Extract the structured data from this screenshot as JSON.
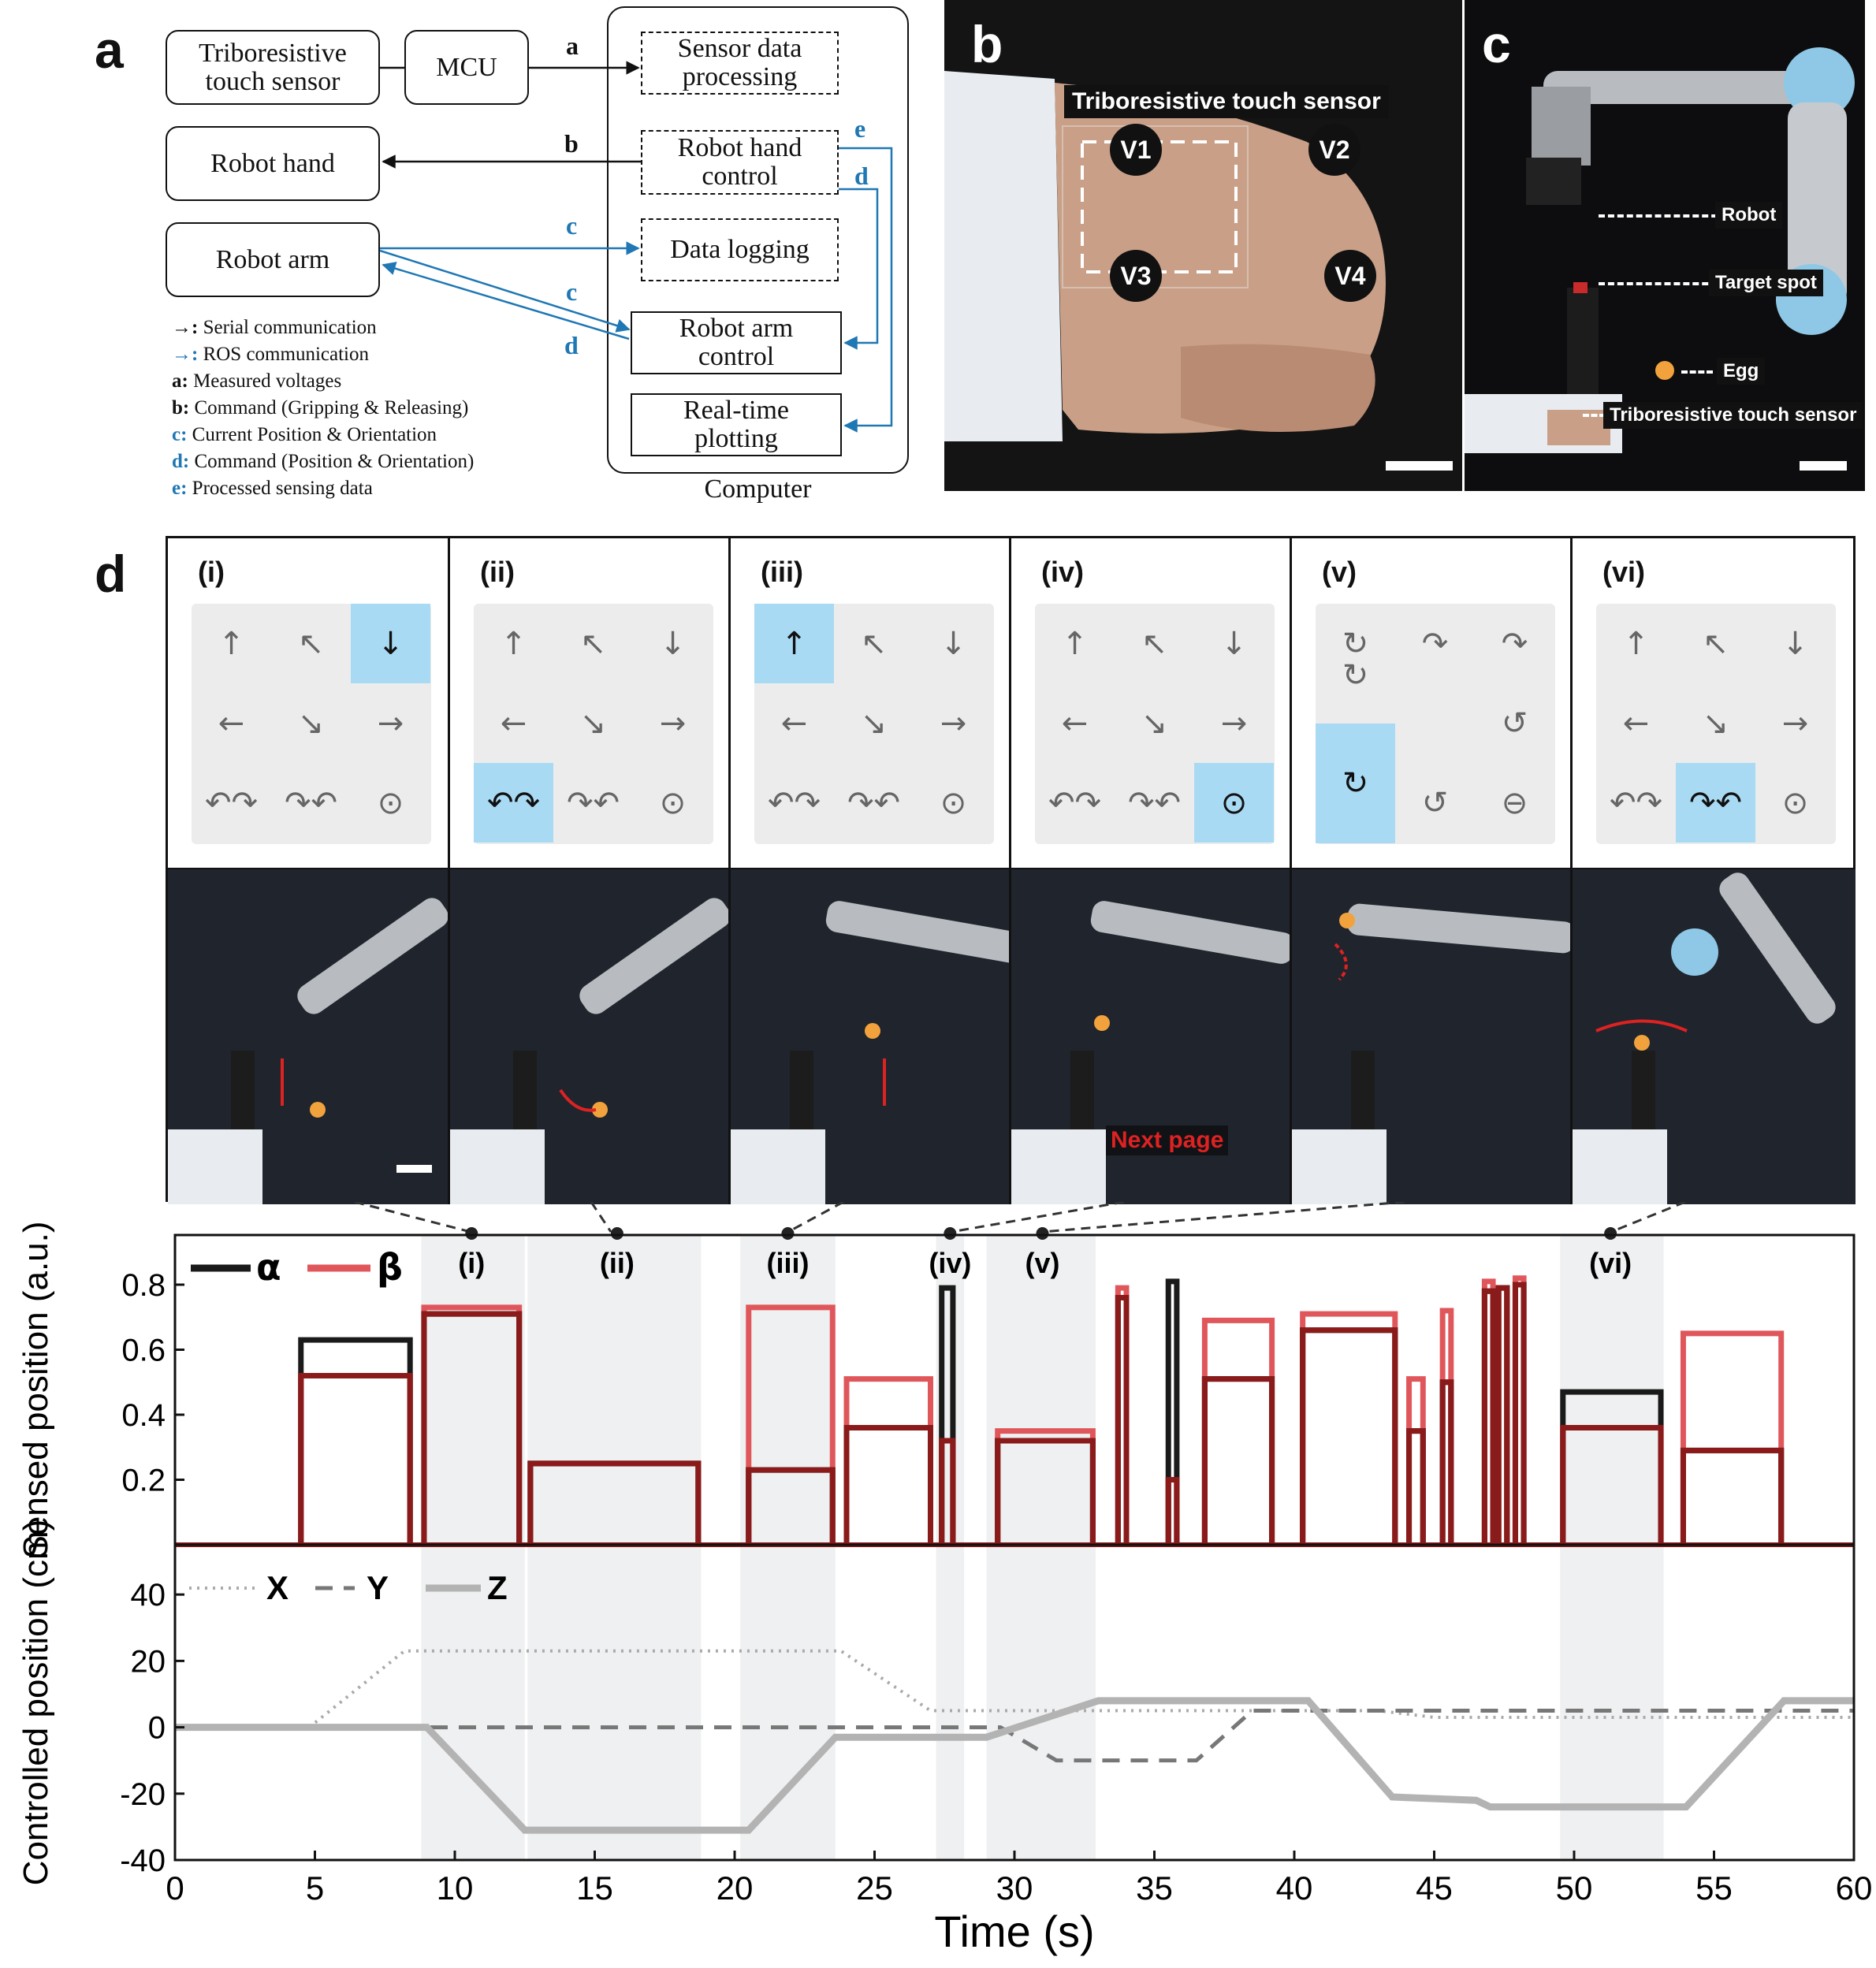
{
  "panel_letters": {
    "a": "a",
    "b": "b",
    "c": "c",
    "d": "d"
  },
  "diagram": {
    "sensor": "Triboresistive touch sensor",
    "mcu": "MCU",
    "robot_hand": "Robot hand",
    "robot_arm": "Robot arm",
    "sensor_processing": "Sensor data processing",
    "hand_control": "Robot hand control",
    "data_logging": "Data logging",
    "arm_control": "Robot arm control",
    "plotting": "Real-time plotting",
    "computer": "Computer",
    "arrow_labels": {
      "a": "a",
      "b": "b",
      "c1": "c",
      "c2": "c",
      "d1": "d",
      "d2": "d",
      "e": "e"
    },
    "legend": [
      {
        "sym": "→:",
        "text": " Serial communication",
        "color": "#111111"
      },
      {
        "sym": "→:",
        "text": " ROS communication",
        "color": "#1f77b4"
      },
      {
        "sym": "a:",
        "text": " Measured voltages",
        "color": "#111111"
      },
      {
        "sym": "b:",
        "text": " Command (Gripping & Releasing)",
        "color": "#111111"
      },
      {
        "sym": "c:",
        "text": " Current Position & Orientation",
        "color": "#1f77b4"
      },
      {
        "sym": "d:",
        "text": " Command (Position & Orientation)",
        "color": "#1f77b4"
      },
      {
        "sym": "e:",
        "text": " Processed sensing data",
        "color": "#1f77b4"
      }
    ]
  },
  "photo_b": {
    "title": "Triboresistive touch sensor",
    "corners": [
      "V1",
      "V2",
      "V3",
      "V4"
    ]
  },
  "photo_c": {
    "robot": "Robot",
    "target": "Target spot",
    "egg": "Egg",
    "sensor": "Triboresistive touch sensor"
  },
  "steps": [
    {
      "label": "(i)",
      "cells": [
        "↑",
        "↖",
        "↓",
        "←",
        "↘",
        "→",
        "↶↷",
        "↷↶",
        "⊙"
      ],
      "highlight": 2
    },
    {
      "label": "(ii)",
      "cells": [
        "↑",
        "↖",
        "↓",
        "←",
        "↘",
        "→",
        "↶↷",
        "↷↶",
        "⊙"
      ],
      "highlight": 6
    },
    {
      "label": "(iii)",
      "cells": [
        "↑",
        "↖",
        "↓",
        "←",
        "↘",
        "→",
        "↶↷",
        "↷↶",
        "⊙"
      ],
      "highlight": 0
    },
    {
      "label": "(iv)",
      "cells": [
        "↑",
        "↖",
        "↓",
        "←",
        "↘",
        "→",
        "↶↷",
        "↷↶",
        "⊙"
      ],
      "highlight": 8
    },
    {
      "label": "(v)",
      "cells": [
        "↻",
        "↷",
        "↷",
        "↻",
        "",
        "↺",
        "↻",
        "↺",
        "⊖"
      ],
      "highlight": 3
    },
    {
      "label": "(vi)",
      "cells": [
        "↑",
        "↖",
        "↓",
        "←",
        "↘",
        "→",
        "↶↷",
        "↷↶",
        "⊙"
      ],
      "highlight": 7
    }
  ],
  "next_page_label": "Next page",
  "colors": {
    "alpha": "#1a1a1a",
    "beta": "#e0575b",
    "overlap": "#8b1a1a",
    "axis_gray": "#aaaaaa",
    "highlight": "#a9daf3",
    "arrow_blue": "#1f77b4"
  },
  "chart_data": [
    {
      "type": "line",
      "ylabel": "Sensed position (a.u.)",
      "xlim": [
        0,
        60
      ],
      "ylim": [
        0,
        0.8
      ],
      "yticks": [
        0.2,
        0.4,
        0.6,
        0.8
      ],
      "legend": [
        {
          "name": "α",
          "color": "#1a1a1a"
        },
        {
          "name": "β",
          "color": "#e0575b"
        }
      ],
      "highlight_regions": [
        {
          "label": "(i)",
          "x": [
            8.8,
            12.5
          ],
          "marker_x": 10.6
        },
        {
          "label": "(ii)",
          "x": [
            12.6,
            18.8
          ],
          "marker_x": 15.8
        },
        {
          "label": "(iii)",
          "x": [
            20.2,
            23.6
          ],
          "marker_x": 21.9
        },
        {
          "label": "(iv)",
          "x": [
            27.2,
            28.2
          ],
          "marker_x": 27.7
        },
        {
          "label": "(v)",
          "x": [
            29.0,
            32.9
          ],
          "marker_x": 31.0
        },
        {
          "label": "(vi)",
          "x": [
            49.5,
            53.2
          ],
          "marker_x": 51.3
        }
      ],
      "pulses": [
        {
          "x": [
            4.5,
            8.4
          ],
          "alpha": 0.63,
          "beta": 0.52
        },
        {
          "x": [
            8.9,
            12.3
          ],
          "alpha": 0.71,
          "beta": 0.73
        },
        {
          "x": [
            12.7,
            18.7
          ],
          "alpha": 0.25,
          "beta": 0.25
        },
        {
          "x": [
            20.5,
            23.5
          ],
          "alpha": 0.23,
          "beta": 0.73
        },
        {
          "x": [
            24.0,
            27.0
          ],
          "alpha": 0.36,
          "beta": 0.51
        },
        {
          "x": [
            27.4,
            27.8
          ],
          "alpha": 0.79,
          "beta": 0.32
        },
        {
          "x": [
            29.4,
            32.8
          ],
          "alpha": 0.32,
          "beta": 0.35
        },
        {
          "x": [
            33.7,
            34.0
          ],
          "alpha": 0.76,
          "beta": 0.79
        },
        {
          "x": [
            35.5,
            35.8
          ],
          "alpha": 0.81,
          "beta": 0.2
        },
        {
          "x": [
            36.8,
            39.2
          ],
          "alpha": 0.51,
          "beta": 0.69
        },
        {
          "x": [
            40.3,
            43.6
          ],
          "alpha": 0.66,
          "beta": 0.71
        },
        {
          "x": [
            44.1,
            44.6
          ],
          "alpha": 0.35,
          "beta": 0.51
        },
        {
          "x": [
            45.3,
            45.6
          ],
          "alpha": 0.5,
          "beta": 0.72
        },
        {
          "x": [
            46.8,
            47.1
          ],
          "alpha": 0.78,
          "beta": 0.81
        },
        {
          "x": [
            47.3,
            47.6
          ],
          "alpha": 0.79,
          "beta": 0.79
        },
        {
          "x": [
            47.9,
            48.2
          ],
          "alpha": 0.8,
          "beta": 0.82
        },
        {
          "x": [
            49.6,
            53.1
          ],
          "alpha": 0.47,
          "beta": 0.36
        },
        {
          "x": [
            53.9,
            57.4
          ],
          "alpha": 0.29,
          "beta": 0.65
        }
      ]
    },
    {
      "type": "line",
      "ylabel": "Controlled position (cm)",
      "xlabel": "Time (s)",
      "xlim": [
        0,
        60
      ],
      "ylim": [
        -40,
        55
      ],
      "xticks": [
        0,
        5,
        10,
        15,
        20,
        25,
        30,
        35,
        40,
        45,
        50,
        55,
        60
      ],
      "yticks": [
        40,
        20,
        0,
        -20,
        -40
      ],
      "legend": [
        {
          "name": "X",
          "style": "dotted"
        },
        {
          "name": "Y",
          "style": "dashed"
        },
        {
          "name": "Z",
          "style": "solid"
        }
      ],
      "series": [
        {
          "name": "X",
          "x": [
            0,
            4.8,
            8.2,
            23.8,
            27.0,
            43.0,
            45.0,
            60
          ],
          "y": [
            0,
            0,
            23,
            23,
            5,
            5,
            3,
            3
          ]
        },
        {
          "name": "Y",
          "x": [
            0,
            29.5,
            31.5,
            36.5,
            38.5,
            44.0,
            45.0,
            60
          ],
          "y": [
            0,
            0,
            -10,
            -10,
            5,
            5,
            5,
            5
          ]
        },
        {
          "name": "Z",
          "x": [
            0,
            9.0,
            12.5,
            20.5,
            23.6,
            29.0,
            33.0,
            40.5,
            43.5,
            46.5,
            47.0,
            54.0,
            57.5,
            60
          ],
          "y": [
            0,
            0,
            -31,
            -31,
            -3,
            -3,
            8,
            8,
            -21,
            -22,
            -24,
            -24,
            8,
            8
          ]
        }
      ]
    }
  ]
}
